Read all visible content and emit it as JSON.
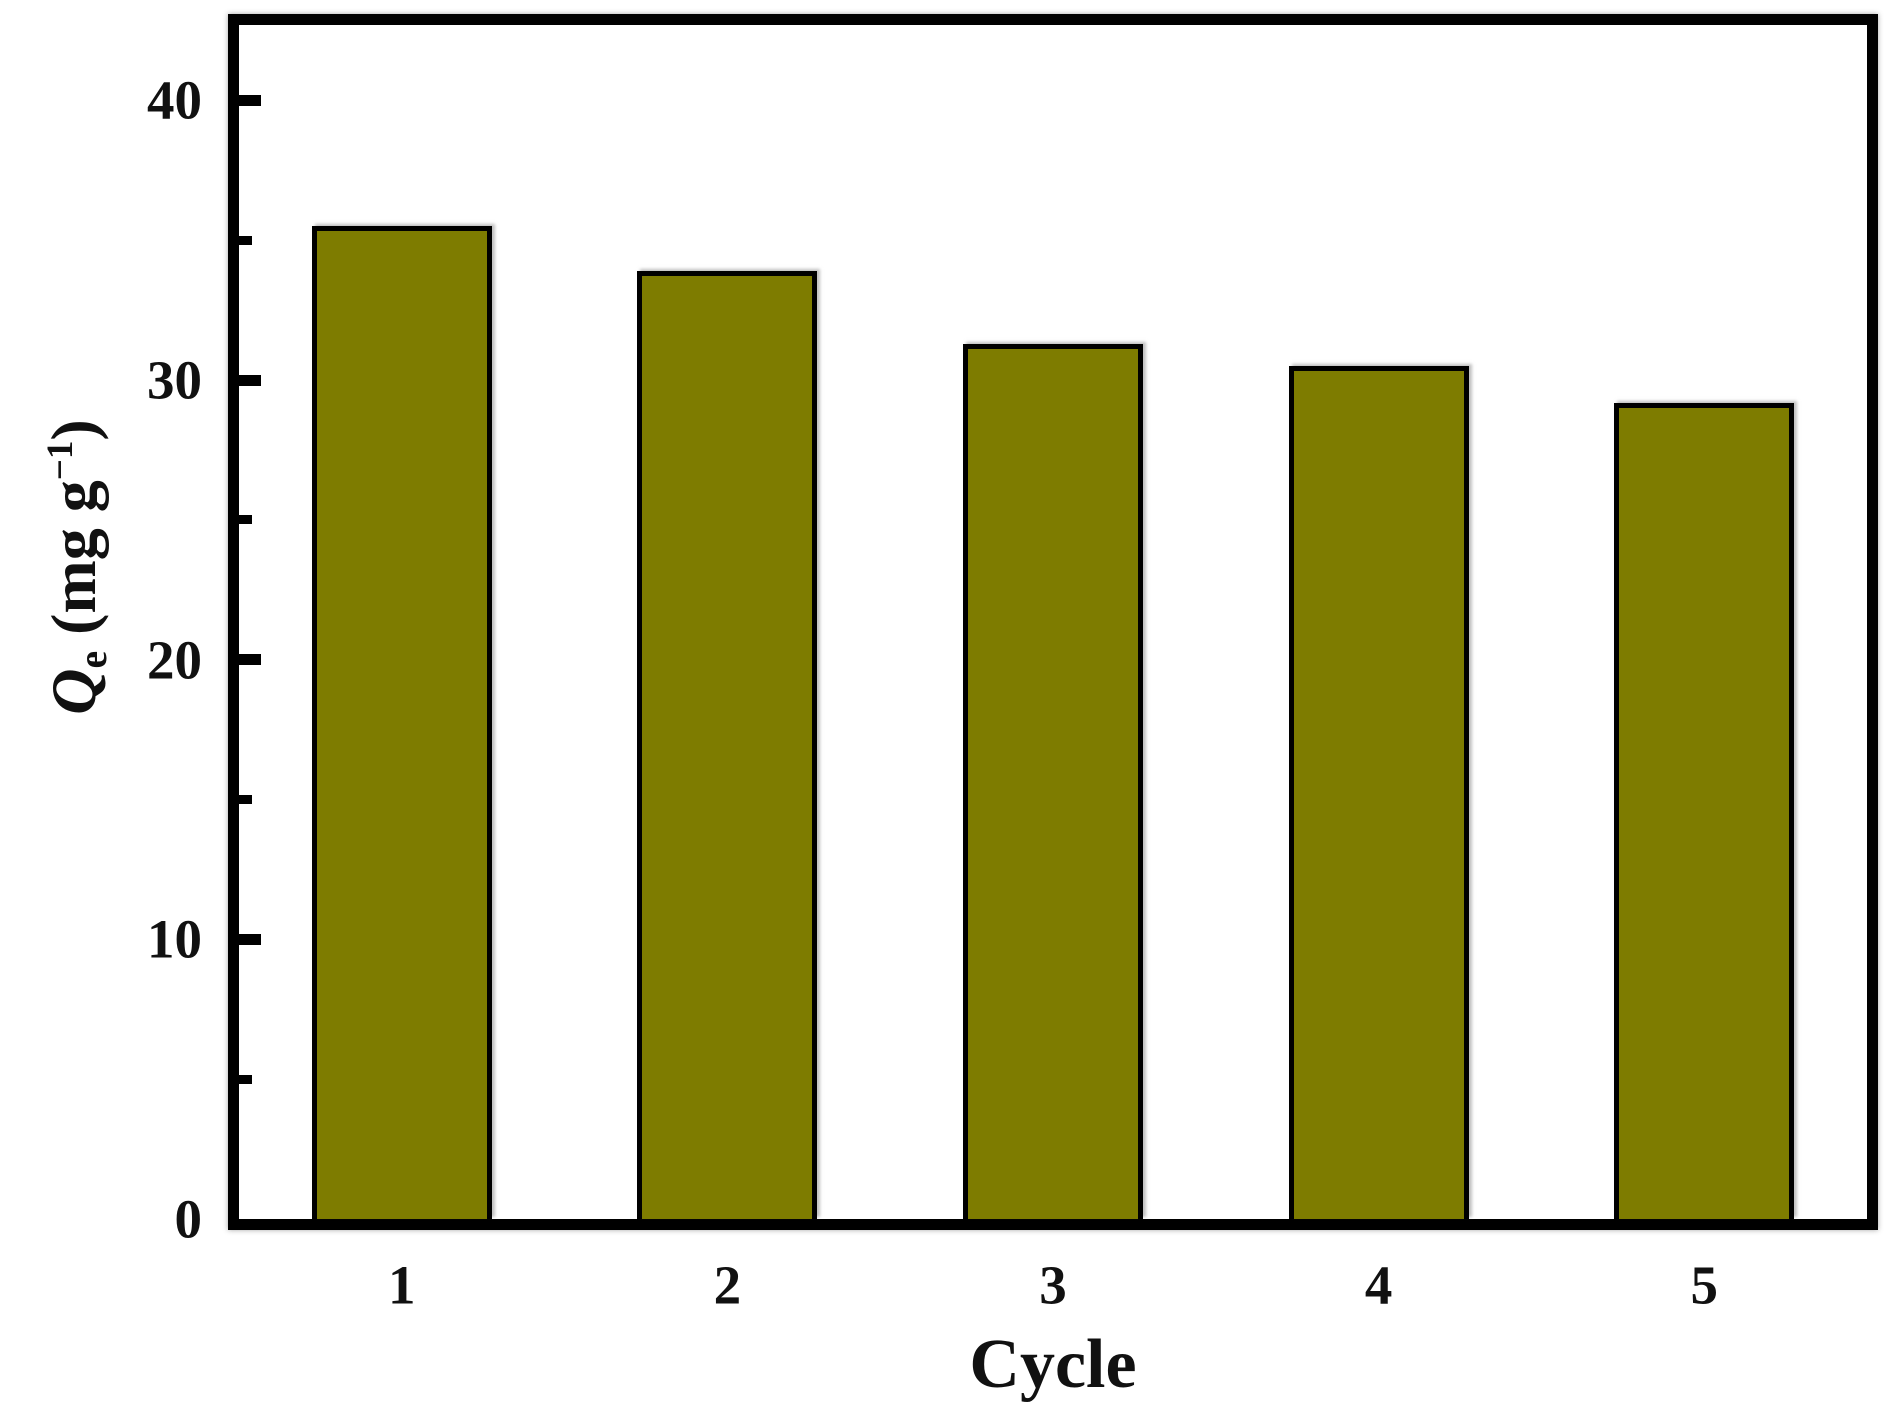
{
  "figure": {
    "background": "#ffffff",
    "frame_color": "#000000",
    "text_color": "#111111"
  },
  "chart_data": {
    "type": "bar",
    "title": "",
    "categories": [
      "1",
      "2",
      "3",
      "4",
      "5"
    ],
    "values": [
      35.5,
      33.9,
      31.3,
      30.5,
      29.2
    ],
    "xlabel": "Cycle",
    "ylabel_plain": "Qe (mg g-1)",
    "ylabel_segments": [
      {
        "text": "Q",
        "style": "italic"
      },
      {
        "text": "e",
        "style": "sub"
      },
      {
        "text": " (mg g",
        "style": "normal"
      },
      {
        "text": "−1",
        "style": "sup"
      },
      {
        "text": ")",
        "style": "normal"
      }
    ],
    "xlim": [
      0.5,
      5.5
    ],
    "ylim": [
      0,
      42.7
    ],
    "bar_width_units": 0.553,
    "bar_fill": "#7e7c00",
    "bar_border": "#000000",
    "grid": false,
    "legend": "none",
    "y_ticks": [
      {
        "value": 0,
        "label": "0",
        "kind": "none"
      },
      {
        "value": 5,
        "label": "",
        "kind": "minor"
      },
      {
        "value": 10,
        "label": "10",
        "kind": "major"
      },
      {
        "value": 15,
        "label": "",
        "kind": "minor"
      },
      {
        "value": 20,
        "label": "20",
        "kind": "major"
      },
      {
        "value": 25,
        "label": "",
        "kind": "minor"
      },
      {
        "value": 30,
        "label": "30",
        "kind": "major"
      },
      {
        "value": 35,
        "label": "",
        "kind": "minor"
      },
      {
        "value": 40,
        "label": "40",
        "kind": "major"
      }
    ],
    "x_ticks": [
      {
        "value": 1,
        "label": "1"
      },
      {
        "value": 2,
        "label": "2"
      },
      {
        "value": 3,
        "label": "3"
      },
      {
        "value": 4,
        "label": "4"
      },
      {
        "value": 5,
        "label": "5"
      }
    ]
  }
}
